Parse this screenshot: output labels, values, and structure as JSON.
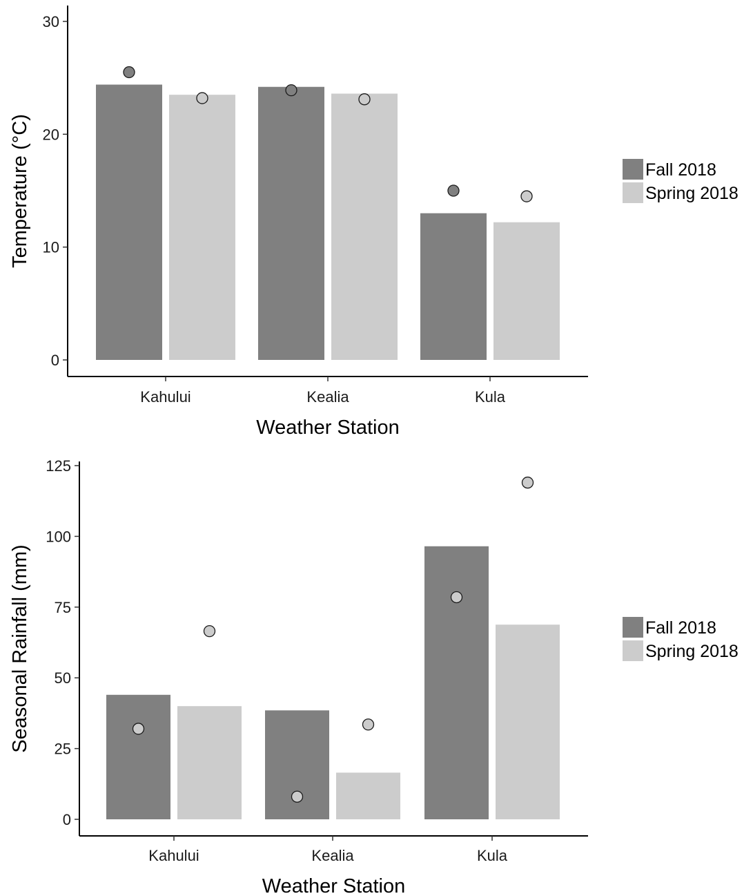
{
  "chart_data": [
    {
      "type": "bar",
      "categories": [
        "Kahului",
        "Kealia",
        "Kula"
      ],
      "series": [
        {
          "name": "Fall 2018",
          "values": [
            24.4,
            24.2,
            13.0
          ],
          "color": "#808080"
        },
        {
          "name": "Spring 2018",
          "values": [
            23.5,
            23.6,
            12.2
          ],
          "color": "#cccccc"
        }
      ],
      "points": [
        {
          "series": "Fall 2018",
          "values": [
            25.5,
            23.9,
            15.0
          ],
          "color": "#808080"
        },
        {
          "series": "Spring 2018",
          "values": [
            23.2,
            23.1,
            14.5
          ],
          "color": "#cccccc"
        }
      ],
      "xlabel": "Weather Station",
      "ylabel": "Temperature (°C)",
      "ylim": [
        0,
        31.5
      ],
      "yticks": [
        0,
        10,
        20,
        30
      ],
      "grid": false,
      "legend_position": "right"
    },
    {
      "type": "bar",
      "categories": [
        "Kahului",
        "Kealia",
        "Kula"
      ],
      "series": [
        {
          "name": "Fall 2018",
          "values": [
            44,
            38.5,
            96.5
          ],
          "color": "#808080"
        },
        {
          "name": "Spring 2018",
          "values": [
            40,
            16.5,
            68.8
          ],
          "color": "#cccccc"
        }
      ],
      "points": [
        {
          "series": "Fall 2018",
          "values": [
            32,
            8,
            78.5
          ],
          "color": "#cccccc"
        },
        {
          "series": "Spring 2018",
          "values": [
            66.5,
            33.5,
            119
          ],
          "color": "#cccccc"
        }
      ],
      "xlabel": "Weather Station",
      "ylabel": "Seasonal Rainfall (mm)",
      "ylim": [
        0,
        125
      ],
      "yticks": [
        0,
        25,
        50,
        75,
        100,
        125
      ],
      "grid": false,
      "legend_position": "right"
    }
  ]
}
